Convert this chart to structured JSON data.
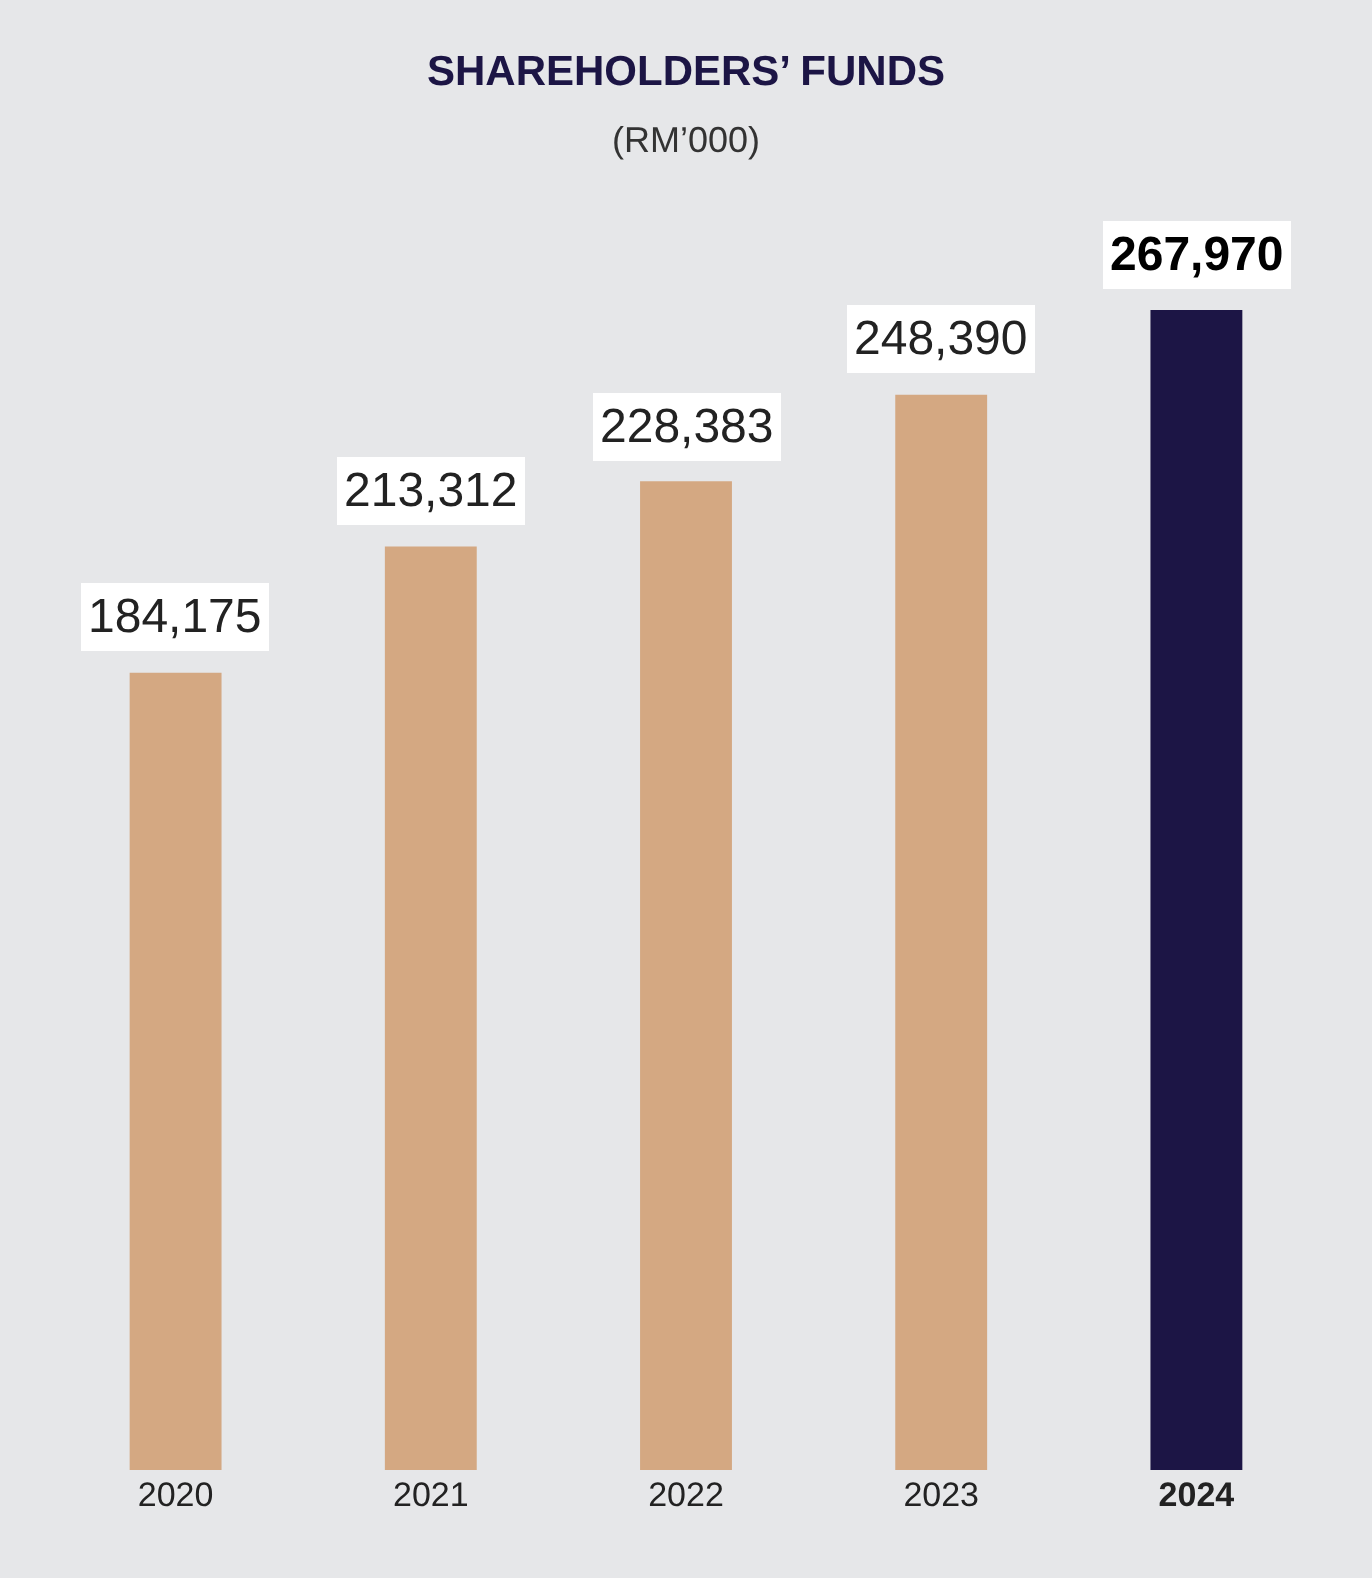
{
  "chart_data": {
    "type": "bar",
    "title": "SHAREHOLDERS’ FUNDS",
    "subtitle": "(RM’000)",
    "categories": [
      "2020",
      "2021",
      "2022",
      "2023",
      "2024"
    ],
    "values": [
      184175,
      213312,
      228383,
      248390,
      267970
    ],
    "colors": [
      "#d4a882",
      "#d4a882",
      "#d4a882",
      "#d4a882",
      "#1c1545"
    ],
    "value_labels": [
      "184,175",
      "213,312",
      "228,383",
      "248,390",
      "267,970"
    ],
    "tick_labels": "x",
    "grid": false,
    "legend": false
  }
}
